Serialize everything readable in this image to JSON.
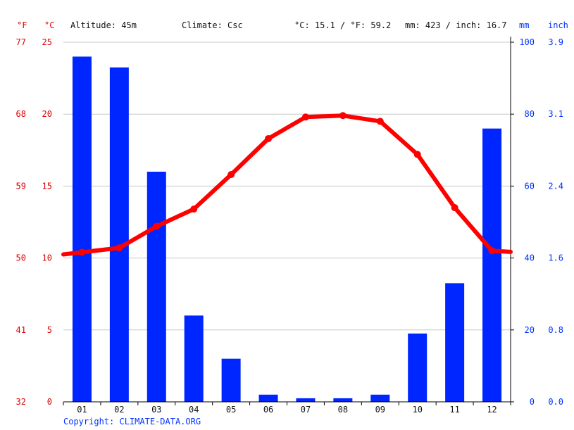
{
  "header": {
    "unit_f": "°F",
    "unit_c": "°C",
    "altitude": "Altitude: 45m",
    "climate": "Climate: Csc",
    "temp_summary": "°C: 15.1 / °F: 59.2",
    "precip_summary": "mm: 423 / inch: 16.7",
    "unit_mm": "mm",
    "unit_inch": "inch"
  },
  "footer": {
    "copyright": "Copyright: CLIMATE-DATA.ORG"
  },
  "colors": {
    "temperature": "#ff0000",
    "precipitation": "#0026ff",
    "temp_axis": "#e00000",
    "precip_axis": "#0033ff"
  },
  "chart_data": {
    "type": "bar",
    "categories": [
      "01",
      "02",
      "03",
      "04",
      "05",
      "06",
      "07",
      "08",
      "09",
      "10",
      "11",
      "12"
    ],
    "series": [
      {
        "type": "bar",
        "axis": "right",
        "values": [
          96,
          93,
          64,
          24,
          12,
          2,
          1,
          1,
          2,
          19,
          33,
          76
        ]
      },
      {
        "type": "line",
        "axis": "left",
        "values": [
          10.4,
          10.7,
          12.2,
          13.4,
          15.8,
          18.3,
          19.8,
          19.9,
          19.5,
          17.2,
          13.5,
          10.5
        ]
      }
    ],
    "y_left": {
      "ylim": [
        0,
        25
      ],
      "ticks": [
        "0",
        "5",
        "10",
        "15",
        "20",
        "25"
      ],
      "secondary_ticks": [
        "32",
        "41",
        "50",
        "59",
        "68",
        "77"
      ]
    },
    "y_right": {
      "ylim": [
        0,
        100
      ],
      "ticks": [
        "0",
        "20",
        "40",
        "60",
        "80",
        "100"
      ],
      "secondary_ticks": [
        "0.0",
        "0.8",
        "1.6",
        "2.4",
        "3.1",
        "3.9"
      ]
    },
    "grid": true,
    "legend": "none"
  }
}
